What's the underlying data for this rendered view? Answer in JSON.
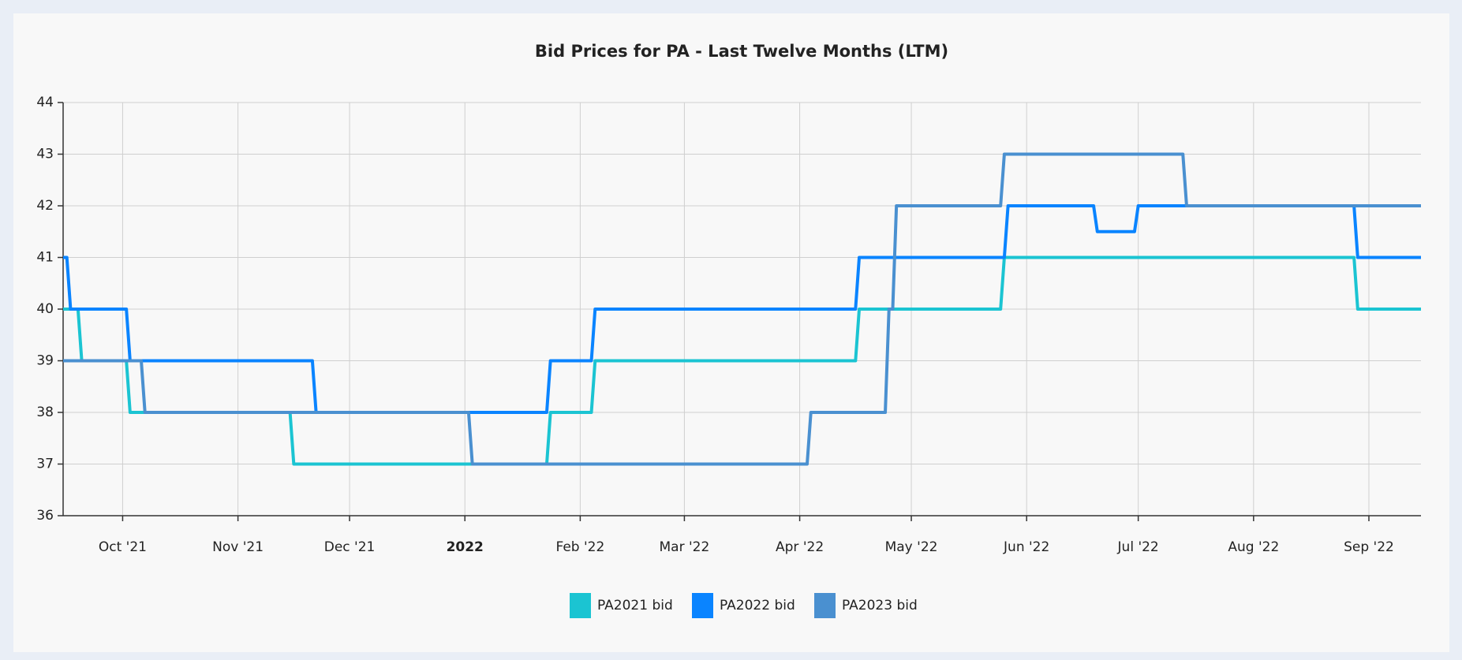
{
  "chart_data": {
    "type": "line",
    "title": "Bid Prices for PA - Last Twelve Months (LTM)",
    "xlim": [
      "2021-09-15",
      "2022-09-15"
    ],
    "xticks": [
      {
        "value": "2021-10-01",
        "label": "Oct '21"
      },
      {
        "value": "2021-11-01",
        "label": "Nov '21"
      },
      {
        "value": "2021-12-01",
        "label": "Dec '21"
      },
      {
        "value": "2022-01-01",
        "label": "2022"
      },
      {
        "value": "2022-02-01",
        "label": "Feb '22"
      },
      {
        "value": "2022-03-01",
        "label": "Mar '22"
      },
      {
        "value": "2022-04-01",
        "label": "Apr '22"
      },
      {
        "value": "2022-05-01",
        "label": "May '22"
      },
      {
        "value": "2022-06-01",
        "label": "Jun '22"
      },
      {
        "value": "2022-07-01",
        "label": "Jul '22"
      },
      {
        "value": "2022-08-01",
        "label": "Aug '22"
      },
      {
        "value": "2022-09-01",
        "label": "Sep '22"
      }
    ],
    "ylim": [
      36,
      44
    ],
    "yticks": [
      36,
      37,
      38,
      39,
      40,
      41,
      42,
      43,
      44
    ],
    "grid": true,
    "legend": "bottom",
    "series": [
      {
        "name": "PA2021 bid",
        "color": "#1bc4d2",
        "x": [
          "2021-09-15",
          "2021-09-19",
          "2021-09-20",
          "2021-10-02",
          "2021-10-03",
          "2021-11-15",
          "2021-11-16",
          "2022-01-23",
          "2022-01-24",
          "2022-02-04",
          "2022-02-05",
          "2022-04-16",
          "2022-04-17",
          "2022-05-25",
          "2022-05-26",
          "2022-08-28",
          "2022-08-29",
          "2022-09-15"
        ],
        "values": [
          40,
          40,
          39,
          39,
          38,
          38,
          37,
          37,
          38,
          38,
          39,
          39,
          40,
          40,
          41,
          41,
          40,
          40
        ]
      },
      {
        "name": "PA2022 bid",
        "color": "#0a84ff",
        "x": [
          "2021-09-15",
          "2021-09-16",
          "2021-09-17",
          "2021-10-02",
          "2021-10-03",
          "2021-11-21",
          "2021-11-22",
          "2022-01-23",
          "2022-01-24",
          "2022-02-04",
          "2022-02-05",
          "2022-04-16",
          "2022-04-17",
          "2022-05-26",
          "2022-05-27",
          "2022-06-19",
          "2022-06-20",
          "2022-06-30",
          "2022-07-01",
          "2022-08-28",
          "2022-08-29",
          "2022-09-15"
        ],
        "values": [
          41,
          41,
          40,
          40,
          39,
          39,
          38,
          38,
          39,
          39,
          40,
          40,
          41,
          41,
          42,
          42,
          41.5,
          41.5,
          42,
          42,
          41,
          41
        ]
      },
      {
        "name": "PA2023 bid",
        "color": "#4a90d0",
        "x": [
          "2021-09-15",
          "2021-10-06",
          "2021-10-07",
          "2022-01-02",
          "2022-01-03",
          "2022-04-03",
          "2022-04-04",
          "2022-04-24",
          "2022-04-25",
          "2022-04-26",
          "2022-04-27",
          "2022-05-25",
          "2022-05-26",
          "2022-07-13",
          "2022-07-14",
          "2022-09-15"
        ],
        "values": [
          39,
          39,
          38,
          38,
          37,
          37,
          38,
          38,
          40,
          40,
          42,
          42,
          43,
          43,
          42,
          42
        ]
      }
    ]
  }
}
